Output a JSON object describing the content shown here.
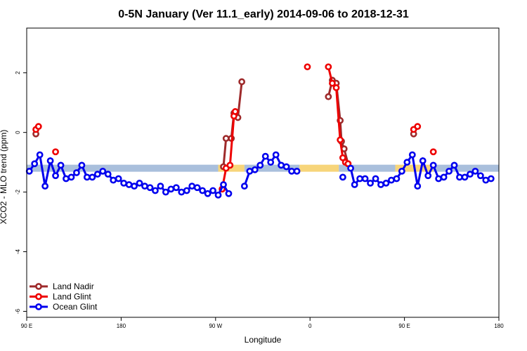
{
  "chart_data": {
    "type": "line",
    "title": "0-5N January (Ver 11.1_early)   2014-09-06 to 2018-12-31",
    "xlabel": "Longitude",
    "ylabel": "XCO2 - MLO trend (ppm)",
    "xlim": [
      90,
      450
    ],
    "ylim": [
      -6.2,
      3.5
    ],
    "x_ticks": [
      {
        "value": 90,
        "label": "90 E"
      },
      {
        "value": 162,
        "label": "180"
      },
      {
        "value": 234,
        "label": "90 W"
      },
      {
        "value": 306,
        "label": "0"
      },
      {
        "value": 378,
        "label": "90 E"
      },
      {
        "value": 450,
        "label": "180"
      }
    ],
    "y_ticks": [
      {
        "value": 2,
        "label": "2"
      },
      {
        "value": 0,
        "label": "0"
      },
      {
        "value": -2,
        "label": "-2"
      },
      {
        "value": -4,
        "label": "-4"
      },
      {
        "value": -6,
        "label": "-6"
      }
    ],
    "grid": false,
    "legend_position": "bottom-left",
    "background_band": {
      "y_center": -1.2,
      "segments": [
        {
          "x": [
            90,
            236
          ],
          "color": "#a9bfdc"
        },
        {
          "x": [
            236,
            256
          ],
          "color": "#f7d57a"
        },
        {
          "x": [
            256,
            298
          ],
          "color": "#a9bfdc"
        },
        {
          "x": [
            298,
            328
          ],
          "color": "#f7d57a"
        },
        {
          "x": [
            328,
            371
          ],
          "color": "#a9bfdc"
        },
        {
          "x": [
            371,
            400
          ],
          "color": "#f7d57a"
        },
        {
          "x": [
            400,
            450
          ],
          "color": "#a9bfdc"
        }
      ]
    },
    "series": [
      {
        "name": "Land Nadir",
        "color": "#9e2a2b",
        "segments": [
          [
            [
              97,
              -0.05
            ]
          ],
          [
            [
              240,
              -1.15
            ],
            [
              242,
              -0.2
            ],
            [
              246,
              -0.2
            ],
            [
              248,
              0.65
            ],
            [
              251,
              0.5
            ],
            [
              254,
              1.7
            ]
          ],
          [
            [
              320,
              1.2
            ],
            [
              323,
              1.75
            ],
            [
              326,
              1.65
            ],
            [
              329,
              0.4
            ],
            [
              330,
              -0.3
            ],
            [
              332,
              -0.55
            ],
            [
              335,
              -1.05
            ]
          ],
          [
            [
              385,
              -0.05
            ]
          ]
        ]
      },
      {
        "name": "Land Glint",
        "color": "#ee0000",
        "segments": [
          [
            [
              97,
              0.1
            ],
            [
              99,
              0.2
            ]
          ],
          [
            [
              112,
              -0.65
            ]
          ],
          [
            [
              239,
              -1.9
            ],
            [
              242,
              -1.2
            ],
            [
              245,
              -1.1
            ],
            [
              248,
              0.55
            ],
            [
              249,
              0.7
            ]
          ],
          [
            [
              304,
              2.2
            ]
          ],
          [
            [
              320,
              2.2
            ],
            [
              323,
              1.65
            ],
            [
              326,
              1.5
            ],
            [
              329,
              -0.25
            ],
            [
              331,
              -0.85
            ],
            [
              333,
              -1.0
            ],
            [
              335,
              -1.05
            ]
          ],
          [
            [
              385,
              0.1
            ],
            [
              388,
              0.2
            ]
          ],
          [
            [
              400,
              -0.65
            ]
          ]
        ]
      },
      {
        "name": "Ocean Glint",
        "color": "#0000ee",
        "segments": [
          [
            [
              92,
              -1.3
            ],
            [
              96,
              -1.05
            ],
            [
              100,
              -0.75
            ],
            [
              104,
              -1.8
            ],
            [
              108,
              -0.95
            ],
            [
              112,
              -1.45
            ],
            [
              116,
              -1.1
            ],
            [
              120,
              -1.55
            ],
            [
              124,
              -1.5
            ],
            [
              128,
              -1.35
            ],
            [
              132,
              -1.1
            ],
            [
              136,
              -1.5
            ],
            [
              140,
              -1.5
            ],
            [
              144,
              -1.4
            ],
            [
              148,
              -1.3
            ],
            [
              152,
              -1.4
            ],
            [
              156,
              -1.6
            ],
            [
              160,
              -1.55
            ],
            [
              164,
              -1.7
            ],
            [
              168,
              -1.75
            ],
            [
              172,
              -1.8
            ],
            [
              176,
              -1.7
            ],
            [
              180,
              -1.8
            ],
            [
              184,
              -1.85
            ],
            [
              188,
              -1.95
            ],
            [
              192,
              -1.8
            ],
            [
              196,
              -2.0
            ],
            [
              200,
              -1.9
            ],
            [
              204,
              -1.85
            ],
            [
              208,
              -2.0
            ],
            [
              212,
              -1.95
            ],
            [
              216,
              -1.8
            ],
            [
              220,
              -1.85
            ],
            [
              224,
              -1.95
            ],
            [
              228,
              -2.05
            ],
            [
              232,
              -1.95
            ],
            [
              236,
              -2.1
            ],
            [
              240,
              -1.75
            ],
            [
              244,
              -2.05
            ]
          ],
          [
            [
              256,
              -1.8
            ],
            [
              260,
              -1.3
            ],
            [
              264,
              -1.25
            ],
            [
              268,
              -1.1
            ],
            [
              272,
              -0.8
            ],
            [
              276,
              -1.0
            ],
            [
              280,
              -0.75
            ],
            [
              284,
              -1.1
            ],
            [
              288,
              -1.15
            ],
            [
              292,
              -1.3
            ],
            [
              296,
              -1.3
            ]
          ],
          [
            [
              331,
              -1.5
            ]
          ],
          [
            [
              337,
              -1.2
            ],
            [
              340,
              -1.75
            ],
            [
              344,
              -1.55
            ],
            [
              348,
              -1.55
            ],
            [
              352,
              -1.7
            ],
            [
              356,
              -1.55
            ],
            [
              360,
              -1.75
            ],
            [
              364,
              -1.7
            ],
            [
              368,
              -1.6
            ],
            [
              372,
              -1.55
            ],
            [
              376,
              -1.3
            ],
            [
              380,
              -1.0
            ],
            [
              384,
              -0.75
            ],
            [
              388,
              -1.8
            ],
            [
              392,
              -0.95
            ],
            [
              396,
              -1.45
            ],
            [
              400,
              -1.1
            ],
            [
              404,
              -1.55
            ],
            [
              408,
              -1.5
            ],
            [
              412,
              -1.3
            ],
            [
              416,
              -1.1
            ],
            [
              420,
              -1.5
            ],
            [
              424,
              -1.5
            ],
            [
              428,
              -1.4
            ],
            [
              432,
              -1.3
            ],
            [
              436,
              -1.45
            ],
            [
              440,
              -1.6
            ],
            [
              444,
              -1.55
            ]
          ]
        ]
      }
    ]
  }
}
